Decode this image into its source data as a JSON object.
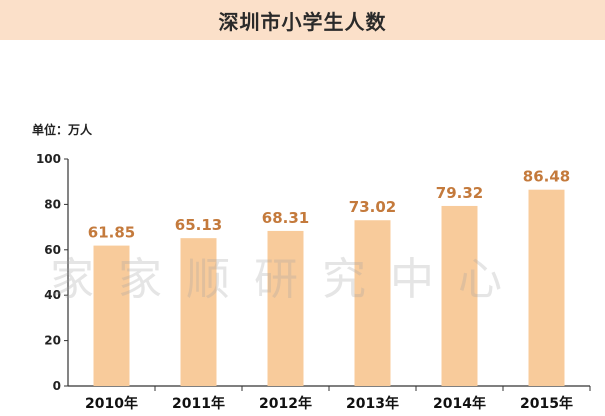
{
  "title": "深圳市小学生人数",
  "unit_label": "单位：万人",
  "watermark": "家家顺研究中心",
  "colors": {
    "bar": "#f8cb9b",
    "label": "#c47a3c",
    "title_bg": "#fbe0c9",
    "axis": "#333333"
  },
  "chart_data": {
    "type": "bar",
    "title": "深圳市小学生人数",
    "ylabel": "单位：万人",
    "categories": [
      "2010年",
      "2011年",
      "2012年",
      "2013年",
      "2014年",
      "2015年"
    ],
    "values": [
      61.85,
      65.13,
      68.31,
      73.02,
      79.32,
      86.48
    ],
    "data_labels": [
      "61.85",
      "65.13",
      "68.31",
      "73.02",
      "79.32",
      "86.48"
    ],
    "ylim": [
      0,
      100
    ],
    "yticks": [
      0,
      20,
      40,
      60,
      80,
      100
    ],
    "grid": false,
    "legend": "none"
  }
}
